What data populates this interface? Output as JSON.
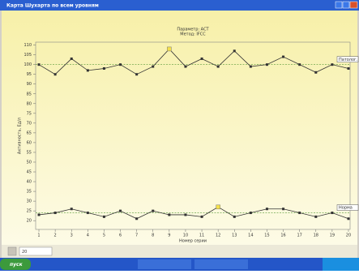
{
  "window": {
    "title": "Карта Шухарта по всем уровням",
    "field": "20",
    "start": "пуск"
  },
  "chart_data": {
    "type": "line",
    "subtitle": [
      "Параметр: АСТ",
      "Метод: IFCC"
    ],
    "x_label": "Номер серии",
    "y_label": "Активность, Ед/л",
    "x": [
      1,
      2,
      3,
      4,
      5,
      6,
      7,
      8,
      9,
      10,
      11,
      12,
      13,
      14,
      15,
      16,
      17,
      18,
      19,
      20
    ],
    "series": [
      {
        "name": "Патолог.",
        "color": "#333333",
        "values": [
          100,
          95,
          103,
          97,
          98,
          100,
          95,
          99,
          108,
          99,
          103,
          99,
          107,
          99,
          100,
          104,
          100,
          96,
          100,
          98
        ],
        "highlight": [
          8
        ],
        "mean": 100
      },
      {
        "name": "Норма",
        "color": "#333333",
        "values": [
          23,
          24,
          26,
          24,
          22,
          25,
          21,
          25,
          23,
          23,
          22,
          27,
          22,
          24,
          26,
          26,
          24,
          22,
          24,
          21
        ],
        "highlight": [
          11
        ],
        "mean": 24
      }
    ],
    "highlight_color": "#f4e04a",
    "mean_color": "#5a9a3a",
    "xlim": [
      0.8,
      20.1
    ],
    "xticks": [
      1,
      2,
      3,
      4,
      5,
      6,
      7,
      8,
      9,
      10,
      11,
      12,
      13,
      14,
      15,
      16,
      17,
      18,
      19,
      20
    ],
    "ylim": [
      15.5,
      111.5
    ],
    "yticks": [
      20,
      25,
      30,
      35,
      40,
      45,
      50,
      55,
      60,
      65,
      70,
      75,
      80,
      85,
      90,
      95,
      100,
      105,
      110
    ]
  }
}
